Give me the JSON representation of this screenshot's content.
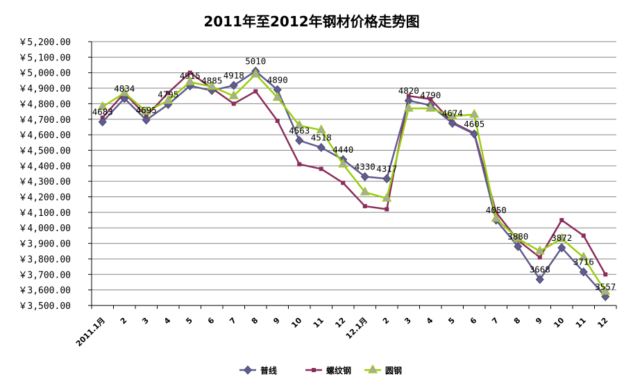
{
  "chart_data": {
    "type": "line",
    "title": "2011年至2012年钢材价格走势图",
    "y_tick_labels": [
      "￥3,500.00",
      "￥3,600.00",
      "￥3,700.00",
      "￥3,800.00",
      "￥3,900.00",
      "￥4,000.00",
      "￥4,100.00",
      "￥4,200.00",
      "￥4,300.00",
      "￥4,400.00",
      "￥4,500.00",
      "￥4,600.00",
      "￥4,700.00",
      "￥4,800.00",
      "￥4,900.00",
      "￥5,000.00",
      "￥5,100.00",
      "￥5,200.00"
    ],
    "ylim": [
      3500,
      5200
    ],
    "grid": true,
    "legend_position": "bottom",
    "categories": [
      "2011.1月",
      "2",
      "3",
      "4",
      "5",
      "6",
      "7",
      "8",
      "9",
      "10",
      "11",
      "12",
      "12.1月",
      "2",
      "3",
      "4",
      "5",
      "6",
      "7",
      "8",
      "9",
      "10",
      "11",
      "12"
    ],
    "series": [
      {
        "name": "普线",
        "color": "#5F5C8F",
        "marker": "diamond",
        "values": [
          4683,
          4834,
          4695,
          4795,
          4915,
          4885,
          4918,
          5010,
          4890,
          4563,
          4518,
          4440,
          4330,
          4317,
          4820,
          4790,
          4674,
          4605,
          4050,
          3880,
          3668,
          3872,
          3716,
          3557
        ]
      },
      {
        "name": "螺纹钢",
        "color": "#8B2D5B",
        "marker": "square",
        "values": [
          4710,
          4870,
          4720,
          4870,
          5000,
          4900,
          4800,
          4880,
          4690,
          4410,
          4380,
          4290,
          4140,
          4120,
          4850,
          4830,
          4680,
          4610,
          4100,
          3920,
          3810,
          4050,
          3950,
          3700
        ]
      },
      {
        "name": "圆钢",
        "color": "#9ACD0F",
        "marker": "triangle",
        "values": [
          4780,
          4870,
          4750,
          4820,
          4940,
          4910,
          4850,
          4990,
          4840,
          4660,
          4630,
          4410,
          4230,
          4190,
          4770,
          4770,
          4720,
          4730,
          4060,
          3930,
          3850,
          3930,
          3810,
          3590
        ]
      }
    ],
    "data_labels": [
      {
        "text": "4683",
        "index": 0,
        "value": 4683
      },
      {
        "text": "4834",
        "index": 1,
        "value": 4834
      },
      {
        "text": "4695",
        "index": 2,
        "value": 4695
      },
      {
        "text": "4795",
        "index": 3,
        "value": 4795
      },
      {
        "text": "4915",
        "index": 4,
        "value": 4915
      },
      {
        "text": "4885",
        "index": 5,
        "value": 4885
      },
      {
        "text": "4918",
        "index": 6,
        "value": 4918
      },
      {
        "text": "5010",
        "index": 7,
        "value": 5010
      },
      {
        "text": "4890",
        "index": 8,
        "value": 4890
      },
      {
        "text": "4563",
        "index": 9,
        "value": 4563
      },
      {
        "text": "4518",
        "index": 10,
        "value": 4518
      },
      {
        "text": "4440",
        "index": 11,
        "value": 4440
      },
      {
        "text": "4330",
        "index": 12,
        "value": 4330
      },
      {
        "text": "4317",
        "index": 13,
        "value": 4317
      },
      {
        "text": "4820",
        "index": 14,
        "value": 4820
      },
      {
        "text": "4790",
        "index": 15,
        "value": 4790
      },
      {
        "text": "4674",
        "index": 16,
        "value": 4674
      },
      {
        "text": "4605",
        "index": 17,
        "value": 4605
      },
      {
        "text": "4050",
        "index": 18,
        "value": 4050
      },
      {
        "text": "3880",
        "index": 19,
        "value": 3880
      },
      {
        "text": "3668",
        "index": 20,
        "value": 3668
      },
      {
        "text": "3872",
        "index": 21,
        "value": 3872
      },
      {
        "text": "3716",
        "index": 22,
        "value": 3716
      },
      {
        "text": "3557",
        "index": 23,
        "value": 3557
      }
    ]
  }
}
